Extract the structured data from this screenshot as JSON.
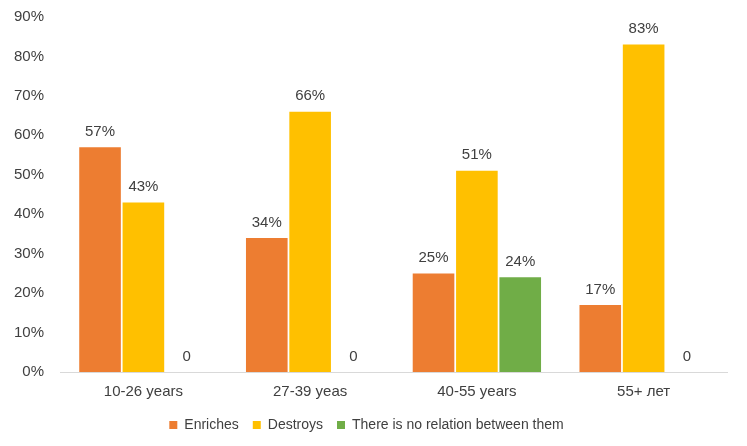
{
  "chart_data": {
    "type": "bar",
    "categories": [
      "10-26 years",
      "27-39 yeas",
      "40-55 years",
      "55+ лет"
    ],
    "series": [
      {
        "name": "Enriches",
        "color": "#ED7D31",
        "values": [
          57,
          34,
          25,
          17
        ],
        "value_labels": [
          "57%",
          "34%",
          "25%",
          "17%"
        ]
      },
      {
        "name": "Destroys",
        "color": "#FFC000",
        "values": [
          43,
          66,
          51,
          83
        ],
        "value_labels": [
          "43%",
          "66%",
          "51%",
          "83%"
        ]
      },
      {
        "name": "There is no relation between them",
        "color": "#70AD47",
        "values": [
          0,
          0,
          24,
          0
        ],
        "value_labels": [
          "0",
          "0",
          "24%",
          "0"
        ]
      }
    ],
    "ylim": [
      0,
      90
    ],
    "yticks": [
      {
        "value": 0,
        "label": "0%"
      },
      {
        "value": 10,
        "label": "10%"
      },
      {
        "value": 20,
        "label": "20%"
      },
      {
        "value": 30,
        "label": "30%"
      },
      {
        "value": 40,
        "label": "40%"
      },
      {
        "value": 50,
        "label": "50%"
      },
      {
        "value": 60,
        "label": "60%"
      },
      {
        "value": 70,
        "label": "70%"
      },
      {
        "value": 80,
        "label": "80%"
      },
      {
        "value": 90,
        "label": "90%"
      }
    ],
    "grid": false,
    "legend": "bottom",
    "data_labels": true
  }
}
